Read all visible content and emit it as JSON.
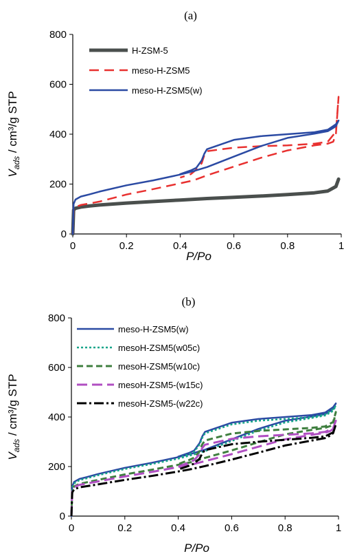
{
  "chart_data": [
    {
      "type": "line",
      "panel_label": "(a)",
      "xlabel": "P/Po",
      "ylabel_main": "V",
      "ylabel_sub": "ads",
      "ylabel_unit": " / cm³/g STP",
      "xlim": [
        0,
        1
      ],
      "ylim": [
        0,
        800
      ],
      "xticks": [
        0,
        0.2,
        0.4,
        0.6,
        0.8,
        1
      ],
      "xtick_labels": [
        "0",
        "0.2",
        "0.4",
        "0.6",
        "0.8",
        "1"
      ],
      "yticks": [
        0,
        200,
        400,
        600,
        800
      ],
      "ytick_labels": [
        "0",
        "200",
        "400",
        "600",
        "800"
      ],
      "grid": false,
      "legend_position": "top-left",
      "series": [
        {
          "name": "H-ZSM-5",
          "color": "#4a4f4d",
          "dash": "solid",
          "width": 5,
          "x": [
            0,
            0.003,
            0.01,
            0.03,
            0.06,
            0.1,
            0.2,
            0.3,
            0.4,
            0.5,
            0.6,
            0.7,
            0.8,
            0.9,
            0.95,
            0.98,
            0.99
          ],
          "y": [
            0,
            96,
            103,
            108,
            112,
            116,
            124,
            130,
            136,
            142,
            147,
            152,
            158,
            165,
            172,
            190,
            220
          ]
        },
        {
          "name": "meso-H-ZSM5",
          "color": "#e8302f",
          "dash": "14,8",
          "width": 2.5,
          "x": [
            0,
            0.003,
            0.01,
            0.03,
            0.06,
            0.1,
            0.2,
            0.3,
            0.4,
            0.45,
            0.5,
            0.6,
            0.7,
            0.8,
            0.9,
            0.95,
            0.97,
            0.98,
            0.99,
            0.98,
            0.95,
            0.9,
            0.8,
            0.7,
            0.6,
            0.5,
            0.49,
            0.48,
            0.46,
            0.44,
            0.4
          ],
          "y": [
            0,
            100,
            108,
            116,
            122,
            130,
            158,
            180,
            203,
            215,
            235,
            270,
            305,
            335,
            355,
            362,
            370,
            400,
            550,
            410,
            370,
            362,
            355,
            352,
            346,
            332,
            316,
            283,
            258,
            240,
            226
          ]
        },
        {
          "name": "meso-H-ZSM5(w)",
          "color": "#2b4aa3",
          "dash": "solid",
          "width": 2.5,
          "x": [
            0,
            0.003,
            0.01,
            0.03,
            0.06,
            0.1,
            0.2,
            0.3,
            0.4,
            0.45,
            0.5,
            0.6,
            0.7,
            0.8,
            0.9,
            0.95,
            0.97,
            0.98,
            0.99,
            0.98,
            0.95,
            0.9,
            0.8,
            0.7,
            0.6,
            0.5,
            0.49,
            0.48,
            0.46,
            0.44,
            0.4
          ],
          "y": [
            0,
            120,
            138,
            150,
            158,
            170,
            195,
            215,
            238,
            252,
            268,
            310,
            352,
            385,
            402,
            412,
            425,
            432,
            455,
            440,
            418,
            408,
            400,
            392,
            377,
            340,
            322,
            295,
            265,
            255,
            240
          ]
        }
      ]
    },
    {
      "type": "line",
      "panel_label": "(b)",
      "xlabel": "P/Po",
      "ylabel_main": "V",
      "ylabel_sub": "ads",
      "ylabel_unit": " / cm³/g STP",
      "xlim": [
        0,
        1
      ],
      "ylim": [
        0,
        800
      ],
      "xticks": [
        0,
        0.2,
        0.4,
        0.6,
        0.8,
        1
      ],
      "xtick_labels": [
        "0",
        "0.2",
        "0.4",
        "0.6",
        "0.8",
        "1"
      ],
      "yticks": [
        0,
        200,
        400,
        600,
        800
      ],
      "ytick_labels": [
        "0",
        "200",
        "400",
        "600",
        "800"
      ],
      "grid": false,
      "legend_position": "top-left",
      "series": [
        {
          "name": "meso-H-ZSM5(w)",
          "color": "#2b4aa3",
          "dash": "solid",
          "width": 2.5,
          "x": [
            0,
            0.003,
            0.01,
            0.03,
            0.06,
            0.1,
            0.2,
            0.3,
            0.4,
            0.45,
            0.5,
            0.6,
            0.7,
            0.8,
            0.9,
            0.95,
            0.97,
            0.98,
            0.99,
            0.98,
            0.95,
            0.9,
            0.8,
            0.7,
            0.6,
            0.5,
            0.49,
            0.48,
            0.46,
            0.44,
            0.4
          ],
          "y": [
            0,
            120,
            138,
            150,
            158,
            170,
            195,
            215,
            238,
            252,
            268,
            310,
            352,
            385,
            402,
            412,
            425,
            432,
            455,
            440,
            418,
            408,
            400,
            392,
            377,
            340,
            322,
            295,
            265,
            255,
            240
          ]
        },
        {
          "name": "mesoH-ZSM5(w05c)",
          "color": "#17a589",
          "dash": "3,3",
          "width": 2.5,
          "x": [
            0,
            0.003,
            0.01,
            0.03,
            0.06,
            0.1,
            0.2,
            0.3,
            0.4,
            0.45,
            0.5,
            0.6,
            0.7,
            0.8,
            0.9,
            0.95,
            0.97,
            0.98,
            0.99,
            0.98,
            0.95,
            0.9,
            0.8,
            0.7,
            0.6,
            0.5,
            0.49,
            0.48,
            0.46,
            0.44,
            0.4
          ],
          "y": [
            0,
            115,
            132,
            145,
            153,
            165,
            190,
            210,
            232,
            246,
            262,
            303,
            345,
            378,
            396,
            406,
            418,
            425,
            445,
            432,
            410,
            400,
            392,
            385,
            370,
            334,
            316,
            289,
            260,
            250,
            234
          ]
        },
        {
          "name": "mesoH-ZSM5(w10c)",
          "color": "#3f7f3f",
          "dash": "9,5",
          "width": 3,
          "x": [
            0,
            0.003,
            0.01,
            0.03,
            0.06,
            0.1,
            0.2,
            0.3,
            0.4,
            0.45,
            0.5,
            0.6,
            0.7,
            0.8,
            0.9,
            0.95,
            0.97,
            0.98,
            0.99,
            0.98,
            0.95,
            0.9,
            0.8,
            0.7,
            0.6,
            0.5,
            0.49,
            0.48,
            0.46,
            0.44,
            0.4
          ],
          "y": [
            0,
            105,
            120,
            130,
            137,
            146,
            168,
            187,
            207,
            218,
            235,
            265,
            298,
            330,
            348,
            356,
            364,
            372,
            420,
            380,
            362,
            356,
            350,
            344,
            333,
            305,
            290,
            262,
            236,
            226,
            210
          ]
        },
        {
          "name": "mesoH-ZSM5-(w15c)",
          "color": "#b04fc2",
          "dash": "15,7",
          "width": 3,
          "x": [
            0,
            0.003,
            0.01,
            0.03,
            0.06,
            0.1,
            0.2,
            0.3,
            0.4,
            0.45,
            0.5,
            0.6,
            0.7,
            0.8,
            0.9,
            0.95,
            0.97,
            0.98,
            0.99,
            0.98,
            0.95,
            0.9,
            0.8,
            0.7,
            0.6,
            0.5,
            0.49,
            0.48,
            0.46,
            0.44,
            0.4
          ],
          "y": [
            0,
            102,
            117,
            126,
            132,
            140,
            160,
            178,
            198,
            208,
            222,
            250,
            280,
            310,
            328,
            336,
            344,
            352,
            385,
            355,
            340,
            334,
            328,
            322,
            312,
            288,
            275,
            250,
            226,
            216,
            200
          ]
        },
        {
          "name": "mesoH-ZSM5-(w22c)",
          "color": "#000000",
          "dash": "14,4,3,4",
          "width": 3,
          "x": [
            0,
            0.003,
            0.01,
            0.03,
            0.06,
            0.1,
            0.2,
            0.3,
            0.4,
            0.45,
            0.5,
            0.6,
            0.7,
            0.8,
            0.9,
            0.95,
            0.97,
            0.98,
            0.99,
            0.98,
            0.95,
            0.9,
            0.8,
            0.7,
            0.6,
            0.5,
            0.49,
            0.48,
            0.46,
            0.44,
            0.4
          ],
          "y": [
            0,
            95,
            108,
            116,
            121,
            128,
            146,
            162,
            180,
            190,
            202,
            228,
            256,
            285,
            305,
            315,
            325,
            335,
            370,
            338,
            322,
            316,
            308,
            300,
            290,
            266,
            254,
            232,
            212,
            203,
            188
          ]
        }
      ]
    }
  ]
}
